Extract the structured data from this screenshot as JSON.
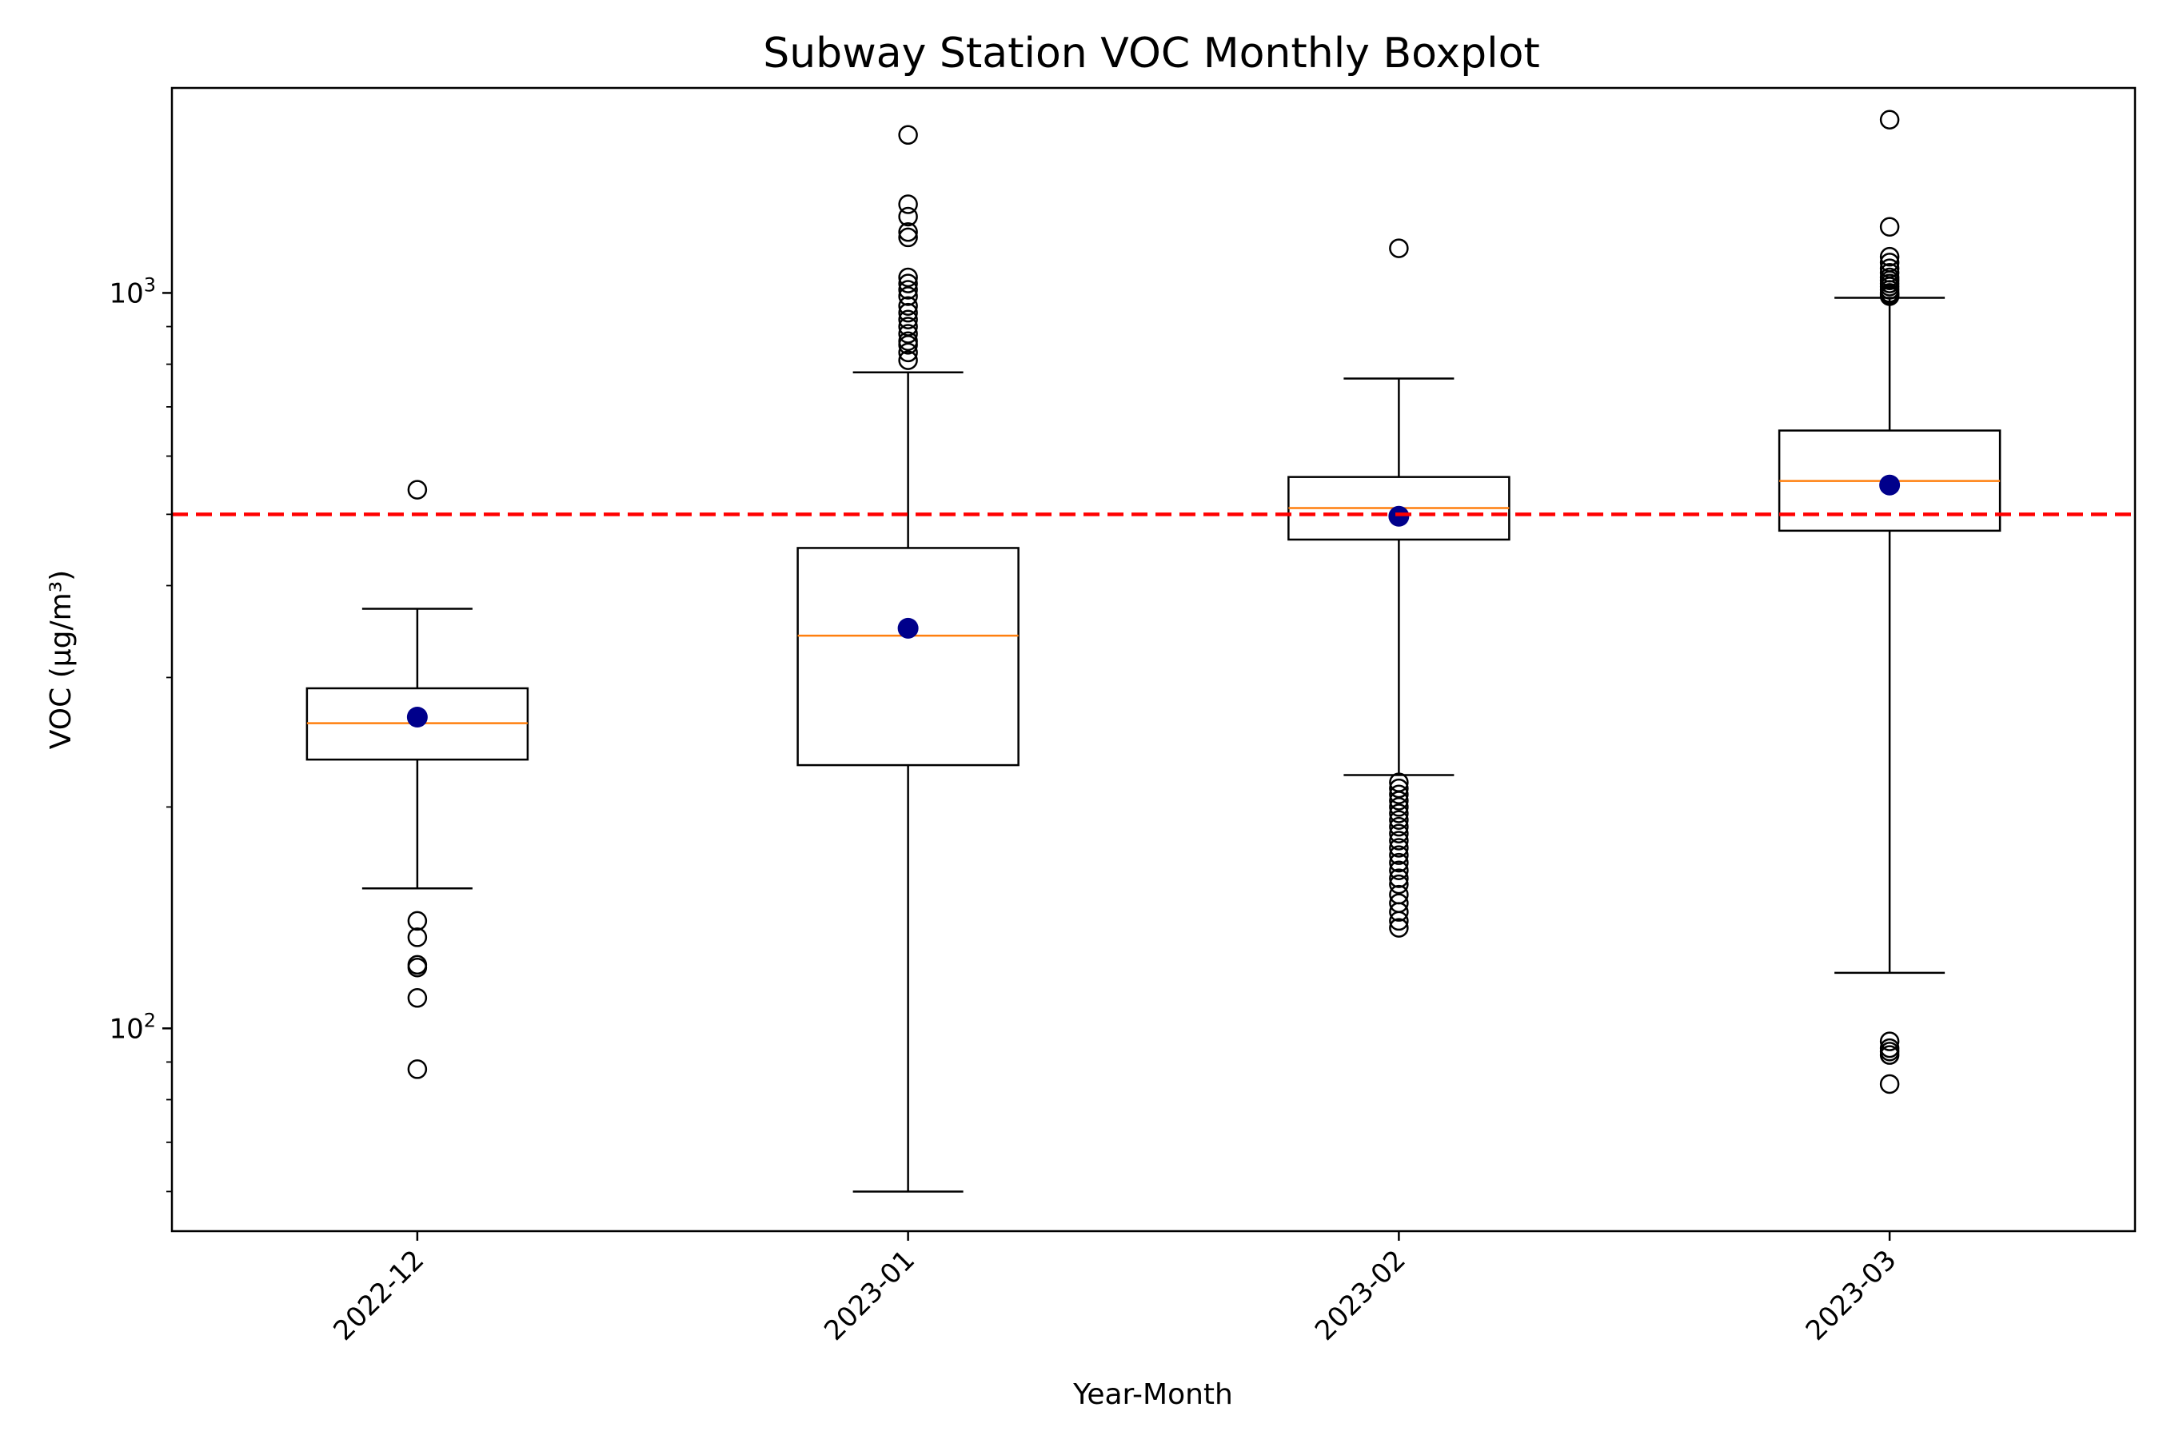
{
  "chart_data": {
    "type": "boxplot",
    "title": "Subway Station VOC Monthly Boxplot",
    "xlabel": "Year-Month",
    "ylabel": "VOC (μg/m³)",
    "yscale": "log",
    "ylim": [
      53,
      1900
    ],
    "categories": [
      "2022-12",
      "2023-01",
      "2023-02",
      "2023-03"
    ],
    "y_ticks": [
      {
        "value": 100,
        "base": "10",
        "exp": "2"
      },
      {
        "value": 1000,
        "base": "10",
        "exp": "3"
      }
    ],
    "reference_line": {
      "value": 500,
      "color": "#ff0000",
      "style": "dashed"
    },
    "boxes": [
      {
        "category": "2022-12",
        "whisker_low": 155,
        "q1": 232,
        "median": 260,
        "q3": 290,
        "whisker_high": 372,
        "mean": 265,
        "outliers": [
          540,
          140,
          133,
          122,
          121,
          110,
          88
        ]
      },
      {
        "category": "2023-01",
        "whisker_low": 60,
        "q1": 228,
        "median": 342,
        "q3": 450,
        "whisker_high": 780,
        "mean": 350,
        "outliers": [
          1640,
          1320,
          1270,
          1210,
          1190,
          1050,
          1030,
          1010,
          990,
          960,
          940,
          920,
          900,
          880,
          860,
          850,
          830,
          810
        ]
      },
      {
        "category": "2023-02",
        "whisker_low": 221,
        "q1": 462,
        "median": 510,
        "q3": 562,
        "whisker_high": 765,
        "mean": 497,
        "outliers": [
          1150,
          216,
          212,
          208,
          204,
          200,
          196,
          192,
          188,
          184,
          180,
          176,
          172,
          168,
          164,
          160,
          157,
          152,
          148,
          144,
          140,
          137
        ]
      },
      {
        "category": "2023-03",
        "whisker_low": 119,
        "q1": 475,
        "median": 555,
        "q3": 650,
        "whisker_high": 985,
        "mean": 548,
        "outliers": [
          1720,
          1230,
          1120,
          1100,
          1080,
          1065,
          1050,
          1040,
          1030,
          1020,
          1010,
          1000,
          995,
          990,
          96,
          94,
          93,
          92,
          84
        ]
      }
    ],
    "colors": {
      "box": "#000000",
      "median": "#ff7f0e",
      "mean": "#00008b",
      "reference": "#ff0000"
    },
    "grid": false
  }
}
